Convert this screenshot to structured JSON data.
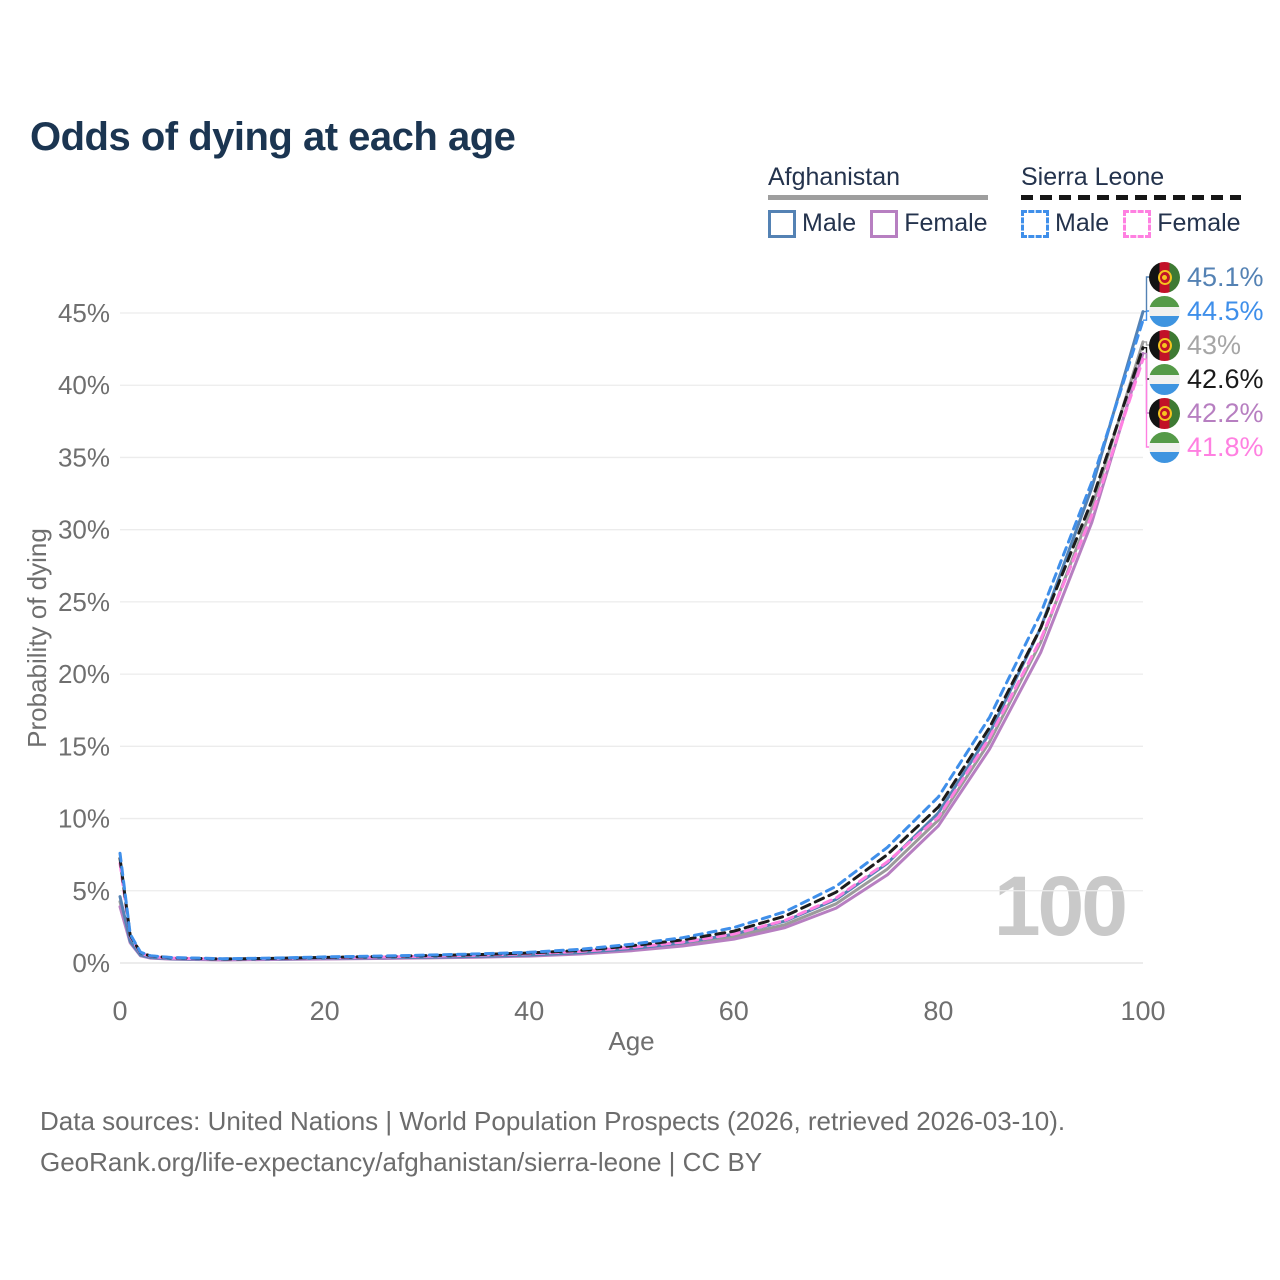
{
  "title": "Odds of dying at each age",
  "legend": {
    "groups": [
      {
        "country": "Afghanistan",
        "line_style": "solid",
        "underline_color": "#9e9e9e",
        "items": [
          {
            "label": "Male",
            "color": "#5482b4"
          },
          {
            "label": "Female",
            "color": "#b77fc1"
          }
        ]
      },
      {
        "country": "Sierra Leone",
        "line_style": "dashed",
        "underline_color": "#161616",
        "items": [
          {
            "label": "Male",
            "color": "#3f8fea"
          },
          {
            "label": "Female",
            "color": "#ff80e1"
          }
        ]
      }
    ]
  },
  "chart_data": {
    "type": "line",
    "title": "Odds of dying at each age",
    "xlabel": "Age",
    "ylabel": "Probability of dying",
    "xlim": [
      0,
      100
    ],
    "ylim": [
      0,
      47
    ],
    "grid": "horizontal",
    "legend_position": "top-right",
    "watermark": "100",
    "x": [
      0,
      1,
      2,
      3,
      5,
      10,
      15,
      20,
      25,
      30,
      35,
      40,
      45,
      50,
      55,
      60,
      65,
      70,
      75,
      80,
      85,
      90,
      95,
      100
    ],
    "xticks": [
      {
        "v": 0,
        "label": "0"
      },
      {
        "v": 20,
        "label": "20"
      },
      {
        "v": 40,
        "label": "40"
      },
      {
        "v": 60,
        "label": "60"
      },
      {
        "v": 80,
        "label": "80"
      },
      {
        "v": 100,
        "label": "100"
      }
    ],
    "yticks": [
      {
        "v": 0,
        "label": "0%"
      },
      {
        "v": 5,
        "label": "5%"
      },
      {
        "v": 10,
        "label": "10%"
      },
      {
        "v": 15,
        "label": "15%"
      },
      {
        "v": 20,
        "label": "20%"
      },
      {
        "v": 25,
        "label": "25%"
      },
      {
        "v": 30,
        "label": "30%"
      },
      {
        "v": 35,
        "label": "35%"
      },
      {
        "v": 40,
        "label": "40%"
      },
      {
        "v": 45,
        "label": "45%"
      }
    ],
    "series": [
      {
        "name": "Afghanistan",
        "sex": "both",
        "style": "solid",
        "color": "#9b9b9b",
        "dash": null,
        "values": [
          4.25,
          1.45,
          0.52,
          0.36,
          0.28,
          0.23,
          0.26,
          0.3,
          0.33,
          0.37,
          0.43,
          0.51,
          0.67,
          0.92,
          1.28,
          1.82,
          2.65,
          4.1,
          6.5,
          9.9,
          15.3,
          22.2,
          31.5,
          43.0
        ]
      },
      {
        "name": "Afghanistan Female",
        "sex": "female",
        "style": "solid",
        "color": "#b77fc1",
        "dash": null,
        "values": [
          3.9,
          1.4,
          0.5,
          0.34,
          0.27,
          0.21,
          0.24,
          0.28,
          0.31,
          0.35,
          0.4,
          0.48,
          0.62,
          0.85,
          1.18,
          1.65,
          2.45,
          3.8,
          6.1,
          9.5,
          14.8,
          21.5,
          30.5,
          42.2
        ]
      },
      {
        "name": "Afghanistan Male",
        "sex": "male",
        "style": "solid",
        "color": "#5482b4",
        "dash": null,
        "values": [
          4.6,
          1.5,
          0.55,
          0.38,
          0.3,
          0.25,
          0.28,
          0.33,
          0.36,
          0.4,
          0.46,
          0.55,
          0.72,
          1.0,
          1.4,
          2.0,
          2.9,
          4.4,
          6.9,
          10.4,
          15.9,
          23.2,
          32.9,
          45.1
        ]
      },
      {
        "name": "Sierra Leone Female",
        "sex": "female",
        "style": "dashed",
        "color": "#ff80e1",
        "dash": "8 6",
        "values": [
          6.9,
          1.85,
          0.68,
          0.45,
          0.34,
          0.26,
          0.3,
          0.36,
          0.41,
          0.47,
          0.54,
          0.64,
          0.8,
          1.08,
          1.45,
          2.0,
          2.95,
          4.5,
          7.0,
          10.1,
          15.6,
          22.4,
          31.0,
          41.8
        ]
      },
      {
        "name": "Sierra Leone",
        "sex": "both",
        "style": "dashed",
        "color": "#1c1c1c",
        "dash": "9 6",
        "values": [
          7.25,
          1.92,
          0.72,
          0.48,
          0.36,
          0.28,
          0.32,
          0.39,
          0.44,
          0.51,
          0.58,
          0.69,
          0.87,
          1.19,
          1.6,
          2.2,
          3.25,
          4.9,
          7.5,
          10.8,
          16.3,
          23.2,
          32.0,
          42.6
        ]
      },
      {
        "name": "Sierra Leone Male",
        "sex": "male",
        "style": "dashed",
        "color": "#3f8fea",
        "dash": "8 6",
        "values": [
          7.6,
          2.0,
          0.75,
          0.5,
          0.38,
          0.3,
          0.34,
          0.42,
          0.48,
          0.55,
          0.63,
          0.74,
          0.95,
          1.3,
          1.75,
          2.45,
          3.55,
          5.3,
          8.0,
          11.5,
          17.0,
          24.2,
          33.3,
          44.5
        ]
      }
    ],
    "end_labels": [
      {
        "value": "45.1%",
        "pct": 45.1,
        "series": "Afghanistan Male",
        "flag": "afghanistan-flag",
        "color": "#5482b4"
      },
      {
        "value": "44.5%",
        "pct": 44.5,
        "series": "Sierra Leone Male",
        "flag": "sierra-leone-flag",
        "color": "#3f8fea"
      },
      {
        "value": "43%",
        "pct": 43.0,
        "series": "Afghanistan",
        "flag": "afghanistan-flag",
        "color": "#a6a6a6"
      },
      {
        "value": "42.6%",
        "pct": 42.6,
        "series": "Sierra Leone",
        "flag": "sierra-leone-flag",
        "color": "#1a1a1a"
      },
      {
        "value": "42.2%",
        "pct": 42.2,
        "series": "Afghanistan Female",
        "flag": "afghanistan-flag",
        "color": "#b77fc1"
      },
      {
        "value": "41.8%",
        "pct": 41.8,
        "series": "Sierra Leone Female",
        "flag": "sierra-leone-flag",
        "color": "#ff80e1"
      }
    ]
  },
  "footer": {
    "line1": "Data sources: United Nations | World Population Prospects (2026, retrieved 2026-03-10).",
    "line2": "GeoRank.org/life-expectancy/afghanistan/sierra-leone | CC BY"
  }
}
